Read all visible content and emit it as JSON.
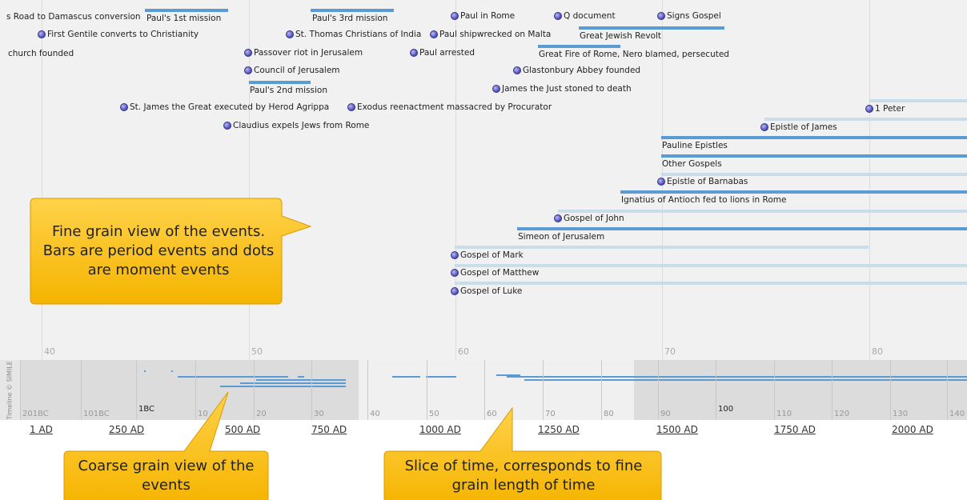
{
  "fine_band": {
    "events": [
      "s Road to Damascus conversion",
      "Paul's 1st mission",
      "Paul's 3rd mission",
      "Paul in Rome",
      "Q document",
      "Signs Gospel",
      "Great Jewish Revolt",
      "First Gentile converts to Christianity",
      "St. Thomas Christians of India",
      "Paul shipwrecked on Malta",
      "church founded",
      "Passover riot in Jerusalem",
      "Paul arrested",
      "Great Fire of Rome, Nero blamed, persecuted",
      "Council of Jerusalem",
      "Glastonbury Abbey founded",
      "Paul's 2nd mission",
      "James the Just stoned to death",
      "St. James the Great executed by Herod Agrippa",
      "Exodus reenactment massacred by Procurator",
      "1 Peter",
      "Claudius expels Jews from Rome",
      "Epistle of James",
      "Pauline Epistles",
      "Other Gospels",
      "Epistle of Barnabas",
      "Ignatius of Antioch fed to lions in Rome",
      "Gospel of John",
      "Simeon of Jerusalem",
      "Gospel of Mark",
      "Gospel of Matthew",
      "Gospel of Luke"
    ],
    "ticks": [
      "40",
      "50",
      "60",
      "70",
      "80"
    ]
  },
  "coarse_band": {
    "credit": "Timeline © SIMILE",
    "ticks": [
      "201BC",
      "101BC",
      "1BC",
      "10",
      "20",
      "30",
      "40",
      "50",
      "60",
      "70",
      "80",
      "90",
      "100",
      "110",
      "120",
      "130",
      "140"
    ]
  },
  "overview": {
    "ticks": [
      "1 AD",
      "250 AD",
      "500 AD",
      "750 AD",
      "1000 AD",
      "1250 AD",
      "1500 AD",
      "1750 AD",
      "2000 AD"
    ]
  },
  "callouts": [
    "Fine grain view of the events. Bars are period events and dots are moment events",
    "Coarse grain view of the events",
    "Slice of time, corresponds to fine grain length of time"
  ]
}
